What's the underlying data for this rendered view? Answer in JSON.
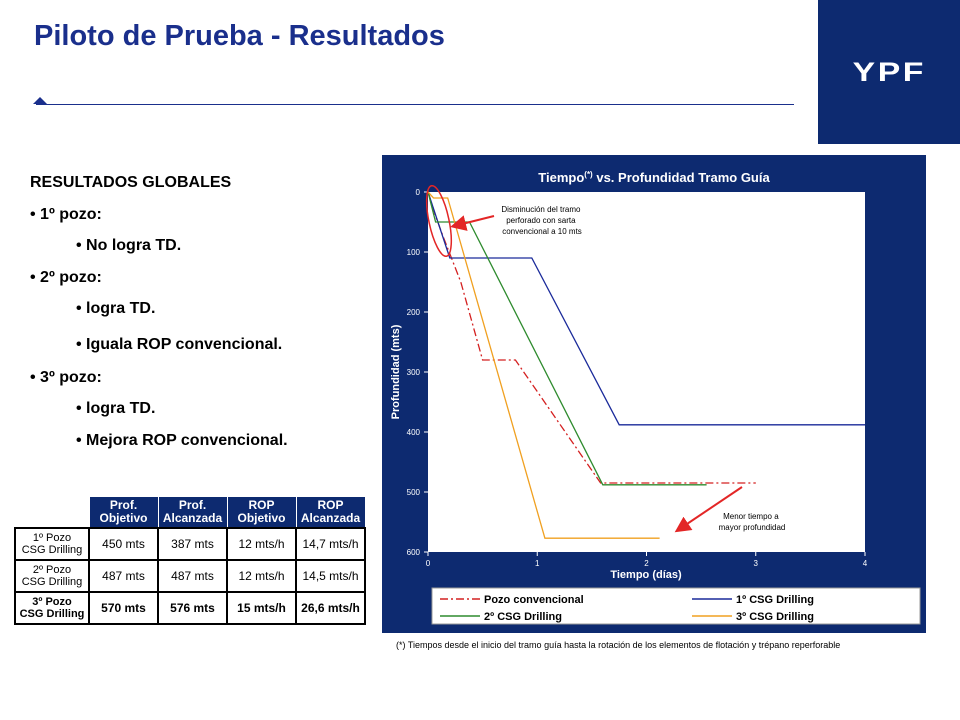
{
  "header": {
    "title": "Piloto de Prueba - Resultados",
    "logo_text": "YPF"
  },
  "results": {
    "heading": "RESULTADOS GLOBALES",
    "items": [
      {
        "text": "• 1º pozo:",
        "level": 1
      },
      {
        "text": "• No logra TD.",
        "level": 2
      },
      {
        "text": "• 2º pozo:",
        "level": 1
      },
      {
        "text": "• logra TD.",
        "level": 2
      },
      {
        "text": "• Iguala ROP convencional.",
        "level": 2
      },
      {
        "text": "• 3º pozo:",
        "level": 1
      },
      {
        "text": "• logra TD.",
        "level": 2
      },
      {
        "text": "• Mejora ROP convencional.",
        "level": 2
      }
    ]
  },
  "table": {
    "headers": [
      "Prof.\nObjetivo",
      "Prof.\nAlcanzada",
      "ROP\nObjetivo",
      "ROP\nAlcanzada"
    ],
    "rows": [
      {
        "label": "1º Pozo\nCSG Drilling",
        "cells": [
          "450 mts",
          "387 mts",
          "12 mts/h",
          "14,7 mts/h"
        ],
        "bold": false
      },
      {
        "label": "2º Pozo\nCSG Drilling",
        "cells": [
          "487 mts",
          "487 mts",
          "12 mts/h",
          "14,5 mts/h"
        ],
        "bold": false
      },
      {
        "label": "3º Pozo\nCSG Drilling",
        "cells": [
          "570 mts",
          "576 mts",
          "15 mts/h",
          "26,6 mts/h"
        ],
        "bold": true
      }
    ]
  },
  "chart_data": {
    "type": "line",
    "title": "Tiempo",
    "title_sup": "(*)",
    "title_rest": " vs. Profundidad Tramo Guía",
    "xlabel": "Tiempo (días)",
    "ylabel": "Profundidad (mts)",
    "xlim": [
      0,
      4
    ],
    "ylim": [
      600,
      0
    ],
    "xticks": [
      "0",
      "1",
      "2",
      "3",
      "4"
    ],
    "yticks": [
      "0",
      "100",
      "200",
      "300",
      "400",
      "500",
      "600"
    ],
    "colors": {
      "panel": "#0d2a70",
      "plot_bg": "#ffffff",
      "axis_text": "#ffffff",
      "annotation": "#e32626"
    },
    "series": [
      {
        "name": "Pozo convencional",
        "color": "#d42020",
        "dash": "8,3,2,3",
        "points": [
          [
            0,
            0
          ],
          [
            0.07,
            40
          ],
          [
            0.14,
            75
          ],
          [
            0.3,
            150
          ],
          [
            0.5,
            280
          ],
          [
            0.8,
            280
          ],
          [
            1.58,
            485
          ],
          [
            3.0,
            485
          ]
        ]
      },
      {
        "name": "1º CSG Drilling",
        "color": "#1a2a9a",
        "dash": "",
        "points": [
          [
            0,
            0
          ],
          [
            0.2,
            110
          ],
          [
            0.95,
            110
          ],
          [
            1.75,
            388
          ],
          [
            4.0,
            388
          ]
        ]
      },
      {
        "name": "2º CSG Drilling",
        "color": "#2e8b2e",
        "dash": "",
        "points": [
          [
            0,
            0
          ],
          [
            0.07,
            50
          ],
          [
            0.38,
            50
          ],
          [
            1.6,
            488
          ],
          [
            2.55,
            488
          ]
        ]
      },
      {
        "name": "3º CSG Drilling",
        "color": "#f0a020",
        "dash": "",
        "points": [
          [
            0,
            0
          ],
          [
            0.05,
            10
          ],
          [
            0.18,
            10
          ],
          [
            1.07,
            577
          ],
          [
            2.12,
            577
          ]
        ]
      }
    ],
    "annotations": [
      {
        "text": [
          "Disminución del tramo",
          "perforado con sarta",
          "convencional a 10 mts"
        ]
      },
      {
        "text": [
          "Menor tiempo a",
          "mayor profundidad"
        ]
      }
    ],
    "legend_placement": "bottom"
  },
  "footnote": "(*) Tiempos desde el inicio del tramo guía hasta la rotación de los elementos de flotación y trépano reperforable"
}
